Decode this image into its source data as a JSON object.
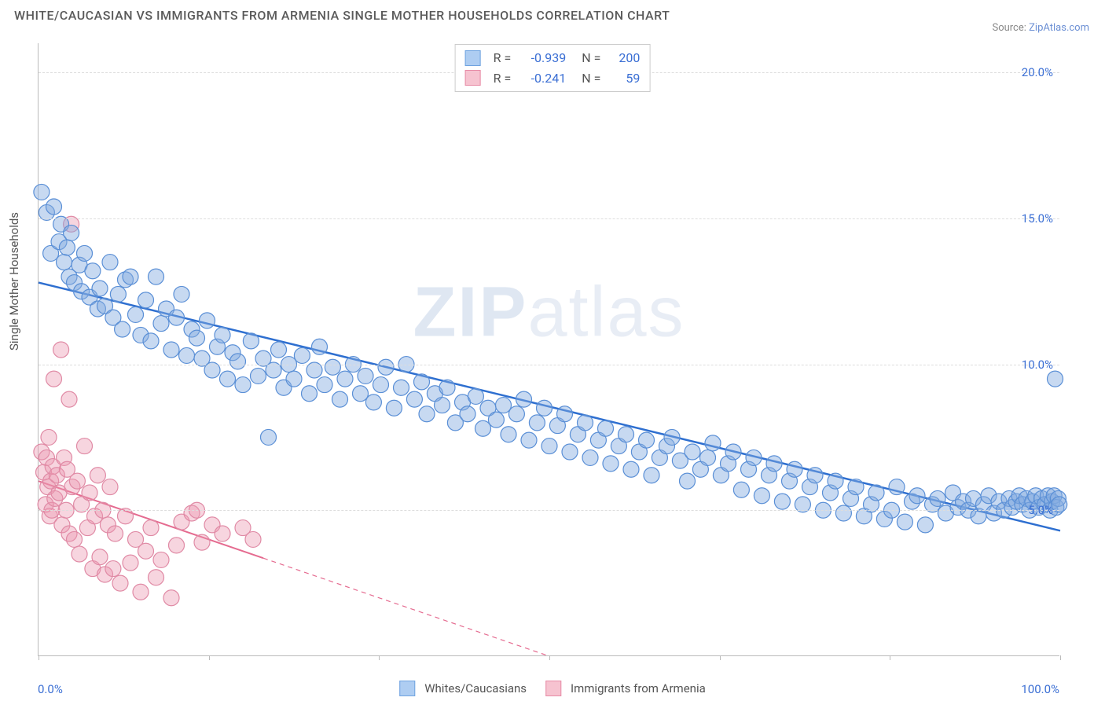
{
  "title": "WHITE/CAUCASIAN VS IMMIGRANTS FROM ARMENIA SINGLE MOTHER HOUSEHOLDS CORRELATION CHART",
  "source_prefix": "Source: ",
  "source_name": "ZipAtlas.com",
  "watermark": {
    "part1": "ZIP",
    "part2": "atlas"
  },
  "y_axis_title": "Single Mother Households",
  "chart": {
    "type": "scatter",
    "xlim": [
      0,
      100
    ],
    "ylim": [
      0,
      21
    ],
    "background_color": "#ffffff",
    "grid_color": "#dddddd",
    "x_ticks": [
      0,
      16.7,
      33.3,
      50,
      66.7,
      83.3,
      100
    ],
    "x_tick_labels": {
      "0": "0.0%",
      "100": "100.0%"
    },
    "y_gridlines": [
      5,
      10,
      15,
      20
    ],
    "y_tick_labels": {
      "5": "5.0%",
      "10": "10.0%",
      "15": "15.0%",
      "20": "20.0%"
    },
    "label_color": "#3b6fd4",
    "label_fontsize": 15
  },
  "stats": [
    {
      "color_fill": "#aecdf2",
      "color_stroke": "#6fa3e0",
      "r_label": "R =",
      "r_value": "-0.939",
      "n_label": "N =",
      "n_value": "200"
    },
    {
      "color_fill": "#f6c3d0",
      "color_stroke": "#e78ba6",
      "r_label": "R =",
      "r_value": "-0.241",
      "n_label": "N =",
      "n_value": "59"
    }
  ],
  "legend": [
    {
      "label": "Whites/Caucasians",
      "fill": "#aecdf2",
      "stroke": "#6fa3e0"
    },
    {
      "label": "Immigrants from Armenia",
      "fill": "#f6c3d0",
      "stroke": "#e78ba6"
    }
  ],
  "series_blue": {
    "point_fill": "rgba(130,170,225,0.45)",
    "point_stroke": "#5a8fd6",
    "point_radius": 10,
    "trend": {
      "x1": 0,
      "y1": 12.8,
      "x2": 100,
      "y2": 4.3,
      "color": "#2e6fd0",
      "width": 2.5,
      "solid_until_x": 100
    },
    "points": [
      [
        0.3,
        15.9
      ],
      [
        0.8,
        15.2
      ],
      [
        1.5,
        15.4
      ],
      [
        1.2,
        13.8
      ],
      [
        2.0,
        14.2
      ],
      [
        2.2,
        14.8
      ],
      [
        2.5,
        13.5
      ],
      [
        2.8,
        14.0
      ],
      [
        3.0,
        13.0
      ],
      [
        3.2,
        14.5
      ],
      [
        3.5,
        12.8
      ],
      [
        4.0,
        13.4
      ],
      [
        4.2,
        12.5
      ],
      [
        4.5,
        13.8
      ],
      [
        5.0,
        12.3
      ],
      [
        5.3,
        13.2
      ],
      [
        5.8,
        11.9
      ],
      [
        6.0,
        12.6
      ],
      [
        6.5,
        12.0
      ],
      [
        7.0,
        13.5
      ],
      [
        7.3,
        11.6
      ],
      [
        7.8,
        12.4
      ],
      [
        8.2,
        11.2
      ],
      [
        8.5,
        12.9
      ],
      [
        9.0,
        13.0
      ],
      [
        9.5,
        11.7
      ],
      [
        10.0,
        11.0
      ],
      [
        10.5,
        12.2
      ],
      [
        11.0,
        10.8
      ],
      [
        11.5,
        13.0
      ],
      [
        12.0,
        11.4
      ],
      [
        12.5,
        11.9
      ],
      [
        13.0,
        10.5
      ],
      [
        13.5,
        11.6
      ],
      [
        14.0,
        12.4
      ],
      [
        14.5,
        10.3
      ],
      [
        15.0,
        11.2
      ],
      [
        15.5,
        10.9
      ],
      [
        16.0,
        10.2
      ],
      [
        16.5,
        11.5
      ],
      [
        17.0,
        9.8
      ],
      [
        17.5,
        10.6
      ],
      [
        18.0,
        11.0
      ],
      [
        18.5,
        9.5
      ],
      [
        19.0,
        10.4
      ],
      [
        19.5,
        10.1
      ],
      [
        20.0,
        9.3
      ],
      [
        20.8,
        10.8
      ],
      [
        21.5,
        9.6
      ],
      [
        22.0,
        10.2
      ],
      [
        22.5,
        7.5
      ],
      [
        23.0,
        9.8
      ],
      [
        23.5,
        10.5
      ],
      [
        24.0,
        9.2
      ],
      [
        24.5,
        10.0
      ],
      [
        25.0,
        9.5
      ],
      [
        25.8,
        10.3
      ],
      [
        26.5,
        9.0
      ],
      [
        27.0,
        9.8
      ],
      [
        27.5,
        10.6
      ],
      [
        28.0,
        9.3
      ],
      [
        28.8,
        9.9
      ],
      [
        29.5,
        8.8
      ],
      [
        30.0,
        9.5
      ],
      [
        30.8,
        10.0
      ],
      [
        31.5,
        9.0
      ],
      [
        32.0,
        9.6
      ],
      [
        32.8,
        8.7
      ],
      [
        33.5,
        9.3
      ],
      [
        34.0,
        9.9
      ],
      [
        34.8,
        8.5
      ],
      [
        35.5,
        9.2
      ],
      [
        36.0,
        10.0
      ],
      [
        36.8,
        8.8
      ],
      [
        37.5,
        9.4
      ],
      [
        38.0,
        8.3
      ],
      [
        38.8,
        9.0
      ],
      [
        39.5,
        8.6
      ],
      [
        40.0,
        9.2
      ],
      [
        40.8,
        8.0
      ],
      [
        41.5,
        8.7
      ],
      [
        42.0,
        8.3
      ],
      [
        42.8,
        8.9
      ],
      [
        43.5,
        7.8
      ],
      [
        44.0,
        8.5
      ],
      [
        44.8,
        8.1
      ],
      [
        45.5,
        8.6
      ],
      [
        46.0,
        7.6
      ],
      [
        46.8,
        8.3
      ],
      [
        47.5,
        8.8
      ],
      [
        48.0,
        7.4
      ],
      [
        48.8,
        8.0
      ],
      [
        49.5,
        8.5
      ],
      [
        50.0,
        7.2
      ],
      [
        50.8,
        7.9
      ],
      [
        51.5,
        8.3
      ],
      [
        52.0,
        7.0
      ],
      [
        52.8,
        7.6
      ],
      [
        53.5,
        8.0
      ],
      [
        54.0,
        6.8
      ],
      [
        54.8,
        7.4
      ],
      [
        55.5,
        7.8
      ],
      [
        56.0,
        6.6
      ],
      [
        56.8,
        7.2
      ],
      [
        57.5,
        7.6
      ],
      [
        58.0,
        6.4
      ],
      [
        58.8,
        7.0
      ],
      [
        59.5,
        7.4
      ],
      [
        60.0,
        6.2
      ],
      [
        60.8,
        6.8
      ],
      [
        61.5,
        7.2
      ],
      [
        62.0,
        7.5
      ],
      [
        62.8,
        6.7
      ],
      [
        63.5,
        6.0
      ],
      [
        64.0,
        7.0
      ],
      [
        64.8,
        6.4
      ],
      [
        65.5,
        6.8
      ],
      [
        66.0,
        7.3
      ],
      [
        66.8,
        6.2
      ],
      [
        67.5,
        6.6
      ],
      [
        68.0,
        7.0
      ],
      [
        68.8,
        5.7
      ],
      [
        69.5,
        6.4
      ],
      [
        70.0,
        6.8
      ],
      [
        70.8,
        5.5
      ],
      [
        71.5,
        6.2
      ],
      [
        72.0,
        6.6
      ],
      [
        72.8,
        5.3
      ],
      [
        73.5,
        6.0
      ],
      [
        74.0,
        6.4
      ],
      [
        74.8,
        5.2
      ],
      [
        75.5,
        5.8
      ],
      [
        76.0,
        6.2
      ],
      [
        76.8,
        5.0
      ],
      [
        77.5,
        5.6
      ],
      [
        78.0,
        6.0
      ],
      [
        78.8,
        4.9
      ],
      [
        79.5,
        5.4
      ],
      [
        80.0,
        5.8
      ],
      [
        80.8,
        4.8
      ],
      [
        81.5,
        5.2
      ],
      [
        82.0,
        5.6
      ],
      [
        82.8,
        4.7
      ],
      [
        83.5,
        5.0
      ],
      [
        84.0,
        5.8
      ],
      [
        84.8,
        4.6
      ],
      [
        85.5,
        5.3
      ],
      [
        86.0,
        5.5
      ],
      [
        86.8,
        4.5
      ],
      [
        87.5,
        5.2
      ],
      [
        88.0,
        5.4
      ],
      [
        88.8,
        4.9
      ],
      [
        89.5,
        5.6
      ],
      [
        90.0,
        5.1
      ],
      [
        90.5,
        5.3
      ],
      [
        91.0,
        5.0
      ],
      [
        91.5,
        5.4
      ],
      [
        92.0,
        4.8
      ],
      [
        92.5,
        5.2
      ],
      [
        93.0,
        5.5
      ],
      [
        93.5,
        4.9
      ],
      [
        94.0,
        5.3
      ],
      [
        94.5,
        5.0
      ],
      [
        95.0,
        5.4
      ],
      [
        95.3,
        5.1
      ],
      [
        95.7,
        5.3
      ],
      [
        96.0,
        5.5
      ],
      [
        96.3,
        5.2
      ],
      [
        96.7,
        5.4
      ],
      [
        97.0,
        5.0
      ],
      [
        97.3,
        5.3
      ],
      [
        97.6,
        5.5
      ],
      [
        97.9,
        5.1
      ],
      [
        98.2,
        5.4
      ],
      [
        98.5,
        5.2
      ],
      [
        98.8,
        5.5
      ],
      [
        99.0,
        5.0
      ],
      [
        99.2,
        5.3
      ],
      [
        99.4,
        5.5
      ],
      [
        99.6,
        5.1
      ],
      [
        99.8,
        5.4
      ],
      [
        99.9,
        5.2
      ],
      [
        99.5,
        9.5
      ]
    ]
  },
  "series_pink": {
    "point_fill": "rgba(235,150,175,0.40)",
    "point_stroke": "#e08aa5",
    "point_radius": 10,
    "trend": {
      "x1": 0,
      "y1": 6.0,
      "x2": 50,
      "y2": 0.0,
      "color": "#e56b90",
      "width": 2,
      "solid_until_x": 22
    },
    "points": [
      [
        0.3,
        7.0
      ],
      [
        0.5,
        6.3
      ],
      [
        0.7,
        5.2
      ],
      [
        0.8,
        6.8
      ],
      [
        0.9,
        5.8
      ],
      [
        1.0,
        7.5
      ],
      [
        1.1,
        4.8
      ],
      [
        1.2,
        6.0
      ],
      [
        1.3,
        5.0
      ],
      [
        1.4,
        6.5
      ],
      [
        1.5,
        9.5
      ],
      [
        1.6,
        5.4
      ],
      [
        1.8,
        6.2
      ],
      [
        2.0,
        5.6
      ],
      [
        2.2,
        10.5
      ],
      [
        2.3,
        4.5
      ],
      [
        2.5,
        6.8
      ],
      [
        2.7,
        5.0
      ],
      [
        2.8,
        6.4
      ],
      [
        3.0,
        4.2
      ],
      [
        3.0,
        8.8
      ],
      [
        3.2,
        14.8
      ],
      [
        3.3,
        5.8
      ],
      [
        3.5,
        4.0
      ],
      [
        3.8,
        6.0
      ],
      [
        4.0,
        3.5
      ],
      [
        4.2,
        5.2
      ],
      [
        4.5,
        7.2
      ],
      [
        4.8,
        4.4
      ],
      [
        5.0,
        5.6
      ],
      [
        5.3,
        3.0
      ],
      [
        5.5,
        4.8
      ],
      [
        5.8,
        6.2
      ],
      [
        6.0,
        3.4
      ],
      [
        6.3,
        5.0
      ],
      [
        6.5,
        2.8
      ],
      [
        6.8,
        4.5
      ],
      [
        7.0,
        5.8
      ],
      [
        7.3,
        3.0
      ],
      [
        7.5,
        4.2
      ],
      [
        8.0,
        2.5
      ],
      [
        8.5,
        4.8
      ],
      [
        9.0,
        3.2
      ],
      [
        9.5,
        4.0
      ],
      [
        10.0,
        2.2
      ],
      [
        10.5,
        3.6
      ],
      [
        11.0,
        4.4
      ],
      [
        11.5,
        2.7
      ],
      [
        12.0,
        3.3
      ],
      [
        13.0,
        2.0
      ],
      [
        13.5,
        3.8
      ],
      [
        14.0,
        4.6
      ],
      [
        15.0,
        4.9
      ],
      [
        15.5,
        5.0
      ],
      [
        16.0,
        3.9
      ],
      [
        17.0,
        4.5
      ],
      [
        18.0,
        4.2
      ],
      [
        20.0,
        4.4
      ],
      [
        21.0,
        4.0
      ]
    ]
  }
}
